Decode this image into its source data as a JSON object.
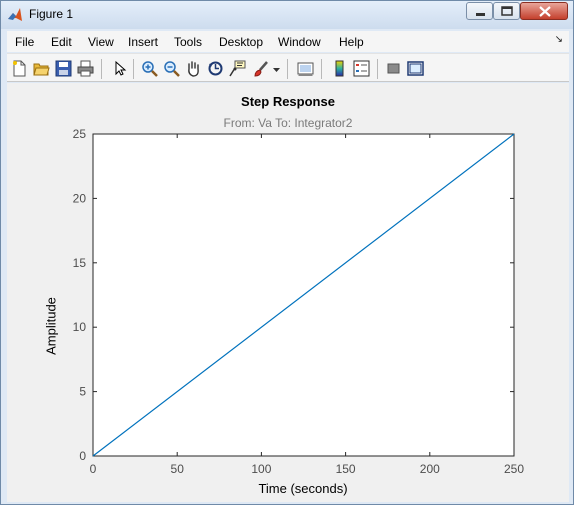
{
  "window": {
    "title": "Figure 1"
  },
  "menu": [
    "File",
    "Edit",
    "View",
    "Insert",
    "Tools",
    "Desktop",
    "Window",
    "Help"
  ],
  "toolbar": [
    "new-figure-icon",
    "open-file-icon",
    "save-icon",
    "print-icon",
    "pointer-icon",
    "zoom-in-icon",
    "zoom-out-icon",
    "pan-hand-icon",
    "rotate-3d-icon",
    "data-cursor-icon",
    "brush-icon",
    "brush-menu-icon",
    "link-plot-icon",
    "colorbar-icon",
    "legend-icon",
    "hide-plot-tools-icon",
    "show-plot-tools-icon"
  ],
  "chart_data": {
    "type": "line",
    "title": "Step Response",
    "subtitle": "From: Va  To: Integrator2",
    "xlabel": "Time (seconds)",
    "ylabel": "Amplitude",
    "xlim": [
      0,
      250
    ],
    "ylim": [
      0,
      25
    ],
    "xticks": [
      "0",
      "50",
      "100",
      "150",
      "200",
      "250"
    ],
    "yticks": [
      "0",
      "5",
      "10",
      "15",
      "20",
      "25"
    ],
    "grid": false,
    "line_color": "#0072bd",
    "series": [
      {
        "x": [
          0,
          250
        ],
        "y": [
          0,
          25
        ]
      }
    ]
  }
}
